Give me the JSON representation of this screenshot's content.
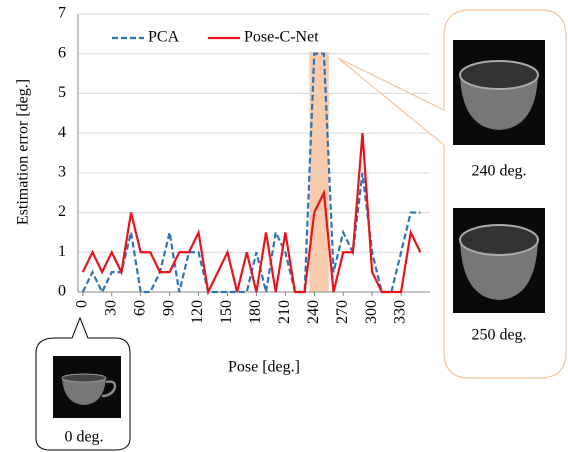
{
  "chart_data": {
    "type": "line",
    "y_label": "Estimation error [deg.]",
    "x_label": "Pose [deg.]",
    "x": [
      0,
      10,
      20,
      30,
      40,
      50,
      60,
      70,
      80,
      90,
      100,
      110,
      120,
      130,
      140,
      150,
      160,
      170,
      180,
      190,
      200,
      210,
      220,
      230,
      240,
      250,
      260,
      270,
      280,
      290,
      300,
      310,
      320,
      330,
      340,
      350
    ],
    "series": [
      {
        "name": "PCA",
        "color": "#2e75b6",
        "dashed": true,
        "values": [
          0,
          0.5,
          0,
          0.5,
          0.5,
          1.5,
          0,
          0,
          0.5,
          1.5,
          0,
          1,
          1,
          0,
          0,
          0,
          0,
          0,
          1,
          0,
          1.5,
          1,
          0,
          0,
          6,
          6,
          0.5,
          1.5,
          1,
          3,
          1,
          0,
          0,
          1,
          2,
          2
        ]
      },
      {
        "name": "Pose-C-Net",
        "color": "#e8141c",
        "dashed": false,
        "values": [
          0.5,
          1,
          0.5,
          1,
          0.5,
          2,
          1,
          1,
          0.5,
          0.5,
          1,
          1,
          1.5,
          0,
          0.5,
          1,
          0,
          1,
          0,
          1.5,
          0,
          1.5,
          0,
          0,
          2,
          2.5,
          0,
          1,
          1,
          4,
          0.5,
          0,
          0,
          0,
          1.5,
          1
        ]
      }
    ],
    "xlim": [
      -5,
      360
    ],
    "ylim": [
      0,
      7
    ],
    "xticks": [
      0,
      30,
      60,
      90,
      120,
      150,
      180,
      210,
      240,
      270,
      300,
      330
    ],
    "yticks": [
      0,
      1,
      2,
      3,
      4,
      5,
      6,
      7
    ],
    "grid": true,
    "highlight_range": [
      235,
      255
    ],
    "highlight_color": "#f8cbad",
    "annotations": [
      "240 deg.",
      "250 deg.",
      "0 deg."
    ]
  }
}
